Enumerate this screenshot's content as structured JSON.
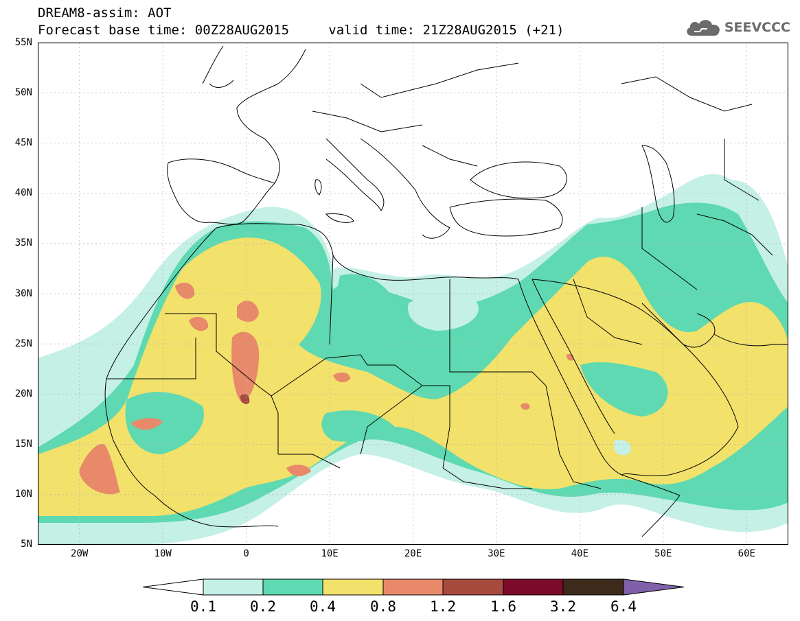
{
  "header": {
    "title": "DREAM8-assim: AOT",
    "base_time": "Forecast base time: 00Z28AUG2015",
    "valid_time": "valid time: 21Z28AUG2015 (+21)",
    "logo_text": "SEEVCCC",
    "logo_icon": "cloud-icon"
  },
  "map": {
    "lon_range": [
      -25,
      65
    ],
    "lat_range": [
      5,
      55
    ],
    "lat_labels": [
      "55N",
      "50N",
      "45N",
      "40N",
      "35N",
      "30N",
      "25N",
      "20N",
      "15N",
      "10N",
      "5N"
    ],
    "lon_labels": [
      "20W",
      "10W",
      "0",
      "10E",
      "20E",
      "30E",
      "40E",
      "50E",
      "60E"
    ],
    "grid": "dotted"
  },
  "legend": {
    "thresholds": [
      "0.1",
      "0.2",
      "0.4",
      "0.8",
      "1.2",
      "1.6",
      "3.2",
      "6.4"
    ],
    "colors": [
      "#ffffff",
      "#c4f0e6",
      "#5ed9b1",
      "#f2e16b",
      "#e8896a",
      "#a84a3e",
      "#7c0a2a",
      "#3d2a1a",
      "#8060a8"
    ]
  }
}
